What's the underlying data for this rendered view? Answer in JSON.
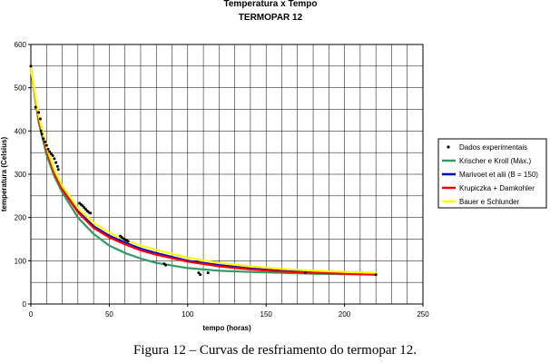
{
  "chart_data": {
    "type": "line",
    "title": "Temperatura x Tempo",
    "subtitle": "TERMOPAR 12",
    "xlabel": "tempo (horas)",
    "ylabel": "temperatura (Celsius)",
    "xlim": [
      0,
      250
    ],
    "ylim": [
      0,
      600
    ],
    "x_ticks": [
      0,
      50,
      100,
      150,
      200,
      250
    ],
    "y_ticks": [
      0,
      100,
      200,
      300,
      400,
      500,
      600
    ],
    "grid": true,
    "legend_position": "right",
    "series": [
      {
        "name": "Dados experimentais",
        "kind": "scatter",
        "color": "#000000",
        "points": [
          [
            0,
            550
          ],
          [
            3,
            455
          ],
          [
            5,
            443
          ],
          [
            6,
            428
          ],
          [
            6.5,
            400
          ],
          [
            7,
            393
          ],
          [
            8,
            382
          ],
          [
            9,
            375
          ],
          [
            10,
            367
          ],
          [
            11,
            358
          ],
          [
            12,
            352
          ],
          [
            13,
            347
          ],
          [
            14,
            343
          ],
          [
            15,
            336
          ],
          [
            16,
            327
          ],
          [
            17,
            318
          ],
          [
            17.5,
            311
          ],
          [
            31,
            233
          ],
          [
            32,
            230
          ],
          [
            33,
            227
          ],
          [
            34,
            223
          ],
          [
            35,
            219
          ],
          [
            36,
            215
          ],
          [
            37,
            212
          ],
          [
            38,
            210
          ],
          [
            57,
            157
          ],
          [
            58,
            154
          ],
          [
            59,
            151
          ],
          [
            60,
            149
          ],
          [
            61,
            147
          ],
          [
            62,
            145
          ],
          [
            85,
            93
          ],
          [
            86,
            90
          ],
          [
            107,
            72
          ],
          [
            108,
            68
          ],
          [
            113,
            72
          ],
          [
            175,
            73
          ],
          [
            220,
            68
          ]
        ]
      },
      {
        "name": "Krischer e Kroll (Máx.)",
        "kind": "line",
        "color": "#339966",
        "x": [
          0,
          5,
          10,
          15,
          20,
          30,
          40,
          50,
          60,
          70,
          80,
          100,
          120,
          140,
          160,
          180,
          200,
          220
        ],
        "values": [
          545,
          420,
          345,
          295,
          258,
          200,
          162,
          135,
          118,
          105,
          95,
          83,
          77,
          74,
          72,
          70,
          69,
          68
        ]
      },
      {
        "name": "Marivoet et alii (B = 150)",
        "kind": "line",
        "color": "#0000CC",
        "x": [
          0,
          5,
          10,
          15,
          20,
          30,
          40,
          50,
          60,
          70,
          80,
          100,
          120,
          140,
          160,
          180,
          200,
          220
        ],
        "values": [
          545,
          430,
          358,
          305,
          268,
          215,
          180,
          158,
          142,
          128,
          118,
          100,
          90,
          82,
          77,
          73,
          71,
          69
        ]
      },
      {
        "name": "Krupiczka + Damkohler",
        "kind": "line",
        "color": "#FF0000",
        "x": [
          0,
          5,
          10,
          15,
          20,
          30,
          40,
          50,
          60,
          70,
          80,
          100,
          120,
          140,
          160,
          180,
          200,
          220
        ],
        "values": [
          545,
          428,
          355,
          302,
          265,
          212,
          176,
          154,
          138,
          124,
          114,
          98,
          87,
          80,
          75,
          72,
          70,
          68
        ]
      },
      {
        "name": "Bauer e Schlunder",
        "kind": "line",
        "color": "#FFFF00",
        "x": [
          0,
          5,
          10,
          15,
          20,
          30,
          40,
          50,
          60,
          70,
          80,
          100,
          120,
          140,
          160,
          180,
          200,
          220
        ],
        "values": [
          545,
          435,
          362,
          310,
          273,
          222,
          188,
          165,
          148,
          135,
          125,
          107,
          95,
          87,
          81,
          77,
          74,
          72
        ]
      }
    ]
  },
  "caption": "Figura 12 – Curvas de resfriamento do termopar 12."
}
